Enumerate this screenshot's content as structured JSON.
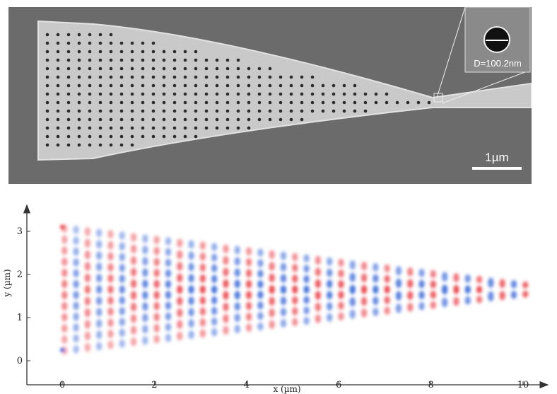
{
  "sem_image": {
    "inset_label": "D=100.2nm",
    "scale_bar_label": "1µm",
    "background_color": "#6b6b6b",
    "structure_color": "#c9c9c9",
    "hole_color": "#2b2b2b"
  },
  "chart_data": {
    "type": "heatmap",
    "title": "",
    "xlabel": "x (µm)",
    "ylabel": "y (µm)",
    "xlim": [
      -0.8,
      10.6
    ],
    "ylim": [
      -0.4,
      3.5
    ],
    "x_ticks": [
      "0",
      "2",
      "4",
      "6",
      "8",
      "10"
    ],
    "y_ticks": [
      "0",
      "1",
      "2",
      "3"
    ],
    "colors": {
      "positive": "#e8323a",
      "negative": "#2c5fd6",
      "zero": "#ffffff"
    },
    "field": "standing-wave pattern in a tapered waveguide, width narrowing from about 3 µm at x=0 to about 0.4 µm near x=10, centred at y≈1.65"
  }
}
